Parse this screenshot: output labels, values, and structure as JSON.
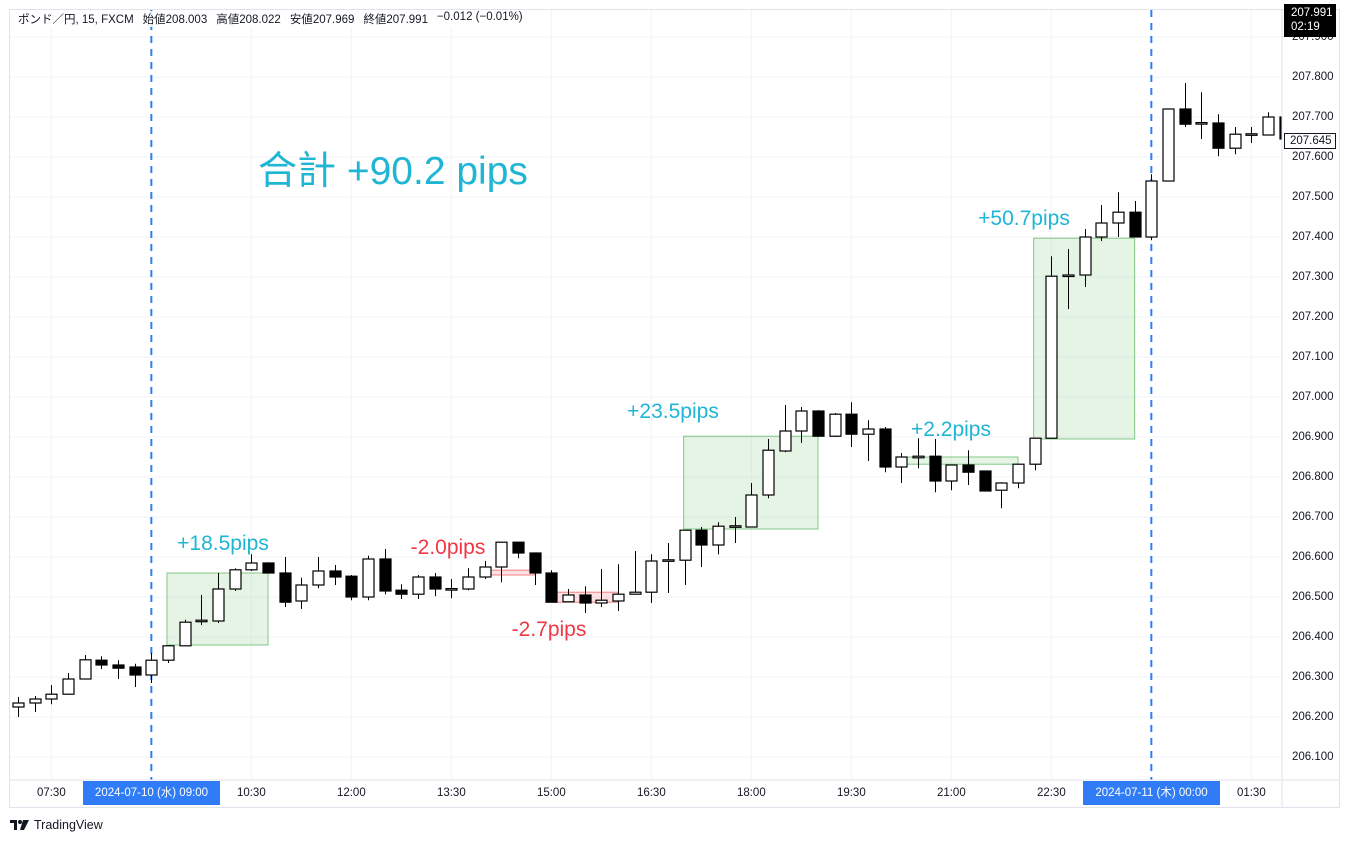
{
  "header": {
    "symbol": "ポンド／円, 15, FXCM",
    "open_label": "始値",
    "open": "208.003",
    "high_label": "高値",
    "high": "208.022",
    "low_label": "安値",
    "low": "207.969",
    "close_label": "終値",
    "close": "207.991",
    "change": "−0.012 (−0.01%)"
  },
  "price_axis": {
    "last_price": "207.991",
    "countdown": "02:19",
    "current_price": "207.645"
  },
  "time_axis": {
    "highlight_start": "2024-07-10 (水)   09:00",
    "highlight_end": "2024-07-11 (木)   00:00"
  },
  "total_label": "合計 +90.2 pips",
  "brand": "TradingView",
  "colors": {
    "up_text": "#1fb5d4",
    "down_text": "#f23645",
    "marker": "#2f7cf6",
    "profit_box": "#81c784",
    "loss_box": "#f08080"
  },
  "chart_data": {
    "type": "candlestick",
    "title": "ポンド／円, 15, FXCM",
    "interval_minutes": 15,
    "ylim": [
      206.05,
      207.92
    ],
    "yticks": [
      "206.100",
      "206.200",
      "206.300",
      "206.400",
      "206.500",
      "206.600",
      "206.700",
      "206.800",
      "206.900",
      "207.000",
      "207.100",
      "207.200",
      "207.300",
      "207.400",
      "207.500",
      "207.600",
      "207.700",
      "207.800",
      "207.900"
    ],
    "xticks": [
      "07:30",
      "10:30",
      "12:00",
      "13:30",
      "15:00",
      "16:30",
      "18:00",
      "19:30",
      "21:00",
      "22:30",
      "01:30"
    ],
    "vertical_markers": [
      "09:00",
      "00:00"
    ],
    "grid": true,
    "columns": [
      "time",
      "open",
      "high",
      "low",
      "close"
    ],
    "candles": [
      [
        "07:00",
        206.225,
        206.25,
        206.2,
        206.235
      ],
      [
        "07:15",
        206.235,
        206.2525,
        206.2125,
        206.245
      ],
      [
        "07:30",
        206.245,
        206.28,
        206.232,
        206.257
      ],
      [
        "07:45",
        206.257,
        206.31,
        206.257,
        206.295
      ],
      [
        "08:00",
        206.295,
        206.355,
        206.295,
        206.343
      ],
      [
        "08:15",
        206.342,
        206.352,
        206.32,
        206.33
      ],
      [
        "08:30",
        206.33,
        206.342,
        206.295,
        206.322
      ],
      [
        "08:45",
        206.325,
        206.333,
        206.275,
        206.305
      ],
      [
        "09:00",
        206.305,
        206.36,
        206.285,
        206.342
      ],
      [
        "09:15",
        206.342,
        206.378,
        206.335,
        206.378
      ],
      [
        "09:30",
        206.378,
        206.443,
        206.378,
        206.437
      ],
      [
        "09:45",
        206.44,
        206.505,
        206.43,
        206.442
      ],
      [
        "10:00",
        206.44,
        206.56,
        206.435,
        206.52
      ],
      [
        "10:15",
        206.52,
        206.572,
        206.515,
        206.568
      ],
      [
        "10:30",
        206.568,
        206.607,
        206.565,
        206.585
      ],
      [
        "10:45",
        206.585,
        206.587,
        206.56,
        206.56
      ],
      [
        "11:00",
        206.56,
        206.6,
        206.475,
        206.487
      ],
      [
        "11:15",
        206.49,
        206.548,
        206.47,
        206.53
      ],
      [
        "11:30",
        206.53,
        206.6,
        206.522,
        206.565
      ],
      [
        "11:45",
        206.565,
        206.58,
        206.53,
        206.55
      ],
      [
        "12:00",
        206.552,
        206.555,
        206.492,
        206.5
      ],
      [
        "12:15",
        206.5,
        206.603,
        206.492,
        206.595
      ],
      [
        "12:30",
        206.595,
        206.62,
        206.507,
        206.515
      ],
      [
        "12:45",
        206.517,
        206.532,
        206.495,
        206.507
      ],
      [
        "13:00",
        206.507,
        206.555,
        206.495,
        206.55
      ],
      [
        "13:15",
        206.55,
        206.56,
        206.502,
        206.52
      ],
      [
        "13:30",
        206.52,
        206.545,
        206.497,
        206.521
      ],
      [
        "13:45",
        206.52,
        206.572,
        206.517,
        206.55
      ],
      [
        "14:00",
        206.55,
        206.59,
        206.545,
        206.575
      ],
      [
        "14:15",
        206.575,
        206.637,
        206.537,
        206.637
      ],
      [
        "14:30",
        206.637,
        206.637,
        206.597,
        206.61
      ],
      [
        "14:45",
        206.61,
        206.61,
        206.53,
        206.56
      ],
      [
        "15:00",
        206.56,
        206.567,
        206.487,
        206.487
      ],
      [
        "15:15",
        206.488,
        206.52,
        206.487,
        206.505
      ],
      [
        "15:30",
        206.505,
        206.527,
        206.46,
        206.485
      ],
      [
        "15:45",
        206.485,
        206.57,
        206.475,
        206.492
      ],
      [
        "16:00",
        206.49,
        206.582,
        206.465,
        206.507
      ],
      [
        "16:15",
        206.507,
        206.615,
        206.507,
        206.512
      ],
      [
        "16:30",
        206.512,
        206.607,
        206.485,
        206.59
      ],
      [
        "16:45",
        206.592,
        206.635,
        206.51,
        206.593
      ],
      [
        "17:00",
        206.592,
        206.667,
        206.53,
        206.667
      ],
      [
        "17:15",
        206.667,
        206.675,
        206.575,
        206.63
      ],
      [
        "17:30",
        206.63,
        206.687,
        206.607,
        206.677
      ],
      [
        "17:45",
        206.677,
        206.7,
        206.635,
        206.678
      ],
      [
        "18:00",
        206.675,
        206.785,
        206.675,
        206.755
      ],
      [
        "18:15",
        206.755,
        206.895,
        206.747,
        206.867
      ],
      [
        "18:30",
        206.865,
        206.98,
        206.862,
        206.915
      ],
      [
        "18:45",
        206.915,
        206.975,
        206.885,
        206.965
      ],
      [
        "19:00",
        206.965,
        206.967,
        206.902,
        206.902
      ],
      [
        "19:15",
        206.902,
        206.96,
        206.9,
        206.957
      ],
      [
        "19:30",
        206.957,
        206.987,
        206.875,
        206.907
      ],
      [
        "19:45",
        206.907,
        206.942,
        206.84,
        206.92
      ],
      [
        "20:00",
        206.92,
        206.925,
        206.812,
        206.825
      ],
      [
        "20:15",
        206.825,
        206.86,
        206.785,
        206.85
      ],
      [
        "20:30",
        206.848,
        206.897,
        206.822,
        206.852
      ],
      [
        "20:45",
        206.852,
        206.895,
        206.762,
        206.79
      ],
      [
        "21:00",
        206.79,
        206.83,
        206.767,
        206.83
      ],
      [
        "21:15",
        206.83,
        206.867,
        206.78,
        206.812
      ],
      [
        "21:30",
        206.815,
        206.815,
        206.765,
        206.765
      ],
      [
        "21:45",
        206.767,
        206.787,
        206.722,
        206.785
      ],
      [
        "22:00",
        206.785,
        206.832,
        206.772,
        206.832
      ],
      [
        "22:15",
        206.832,
        206.897,
        206.817,
        206.897
      ],
      [
        "22:30",
        206.897,
        207.352,
        206.897,
        207.302
      ],
      [
        "22:45",
        207.302,
        207.37,
        207.22,
        207.305
      ],
      [
        "23:00",
        207.305,
        207.42,
        207.275,
        207.4
      ],
      [
        "23:15",
        207.4,
        207.48,
        207.39,
        207.435
      ],
      [
        "23:30",
        207.435,
        207.512,
        207.4,
        207.462
      ],
      [
        "23:45",
        207.462,
        207.49,
        207.4,
        207.4
      ],
      [
        "00:00",
        207.4,
        207.557,
        207.392,
        207.54
      ],
      [
        "00:15",
        207.54,
        207.72,
        207.54,
        207.72
      ],
      [
        "00:30",
        207.72,
        207.785,
        207.675,
        207.682
      ],
      [
        "00:45",
        207.685,
        207.762,
        207.645,
        207.686
      ],
      [
        "01:00",
        207.685,
        207.707,
        207.602,
        207.622
      ],
      [
        "01:15",
        207.622,
        207.675,
        207.607,
        207.657
      ],
      [
        "01:30",
        207.657,
        207.675,
        207.635,
        207.658
      ],
      [
        "01:45",
        207.655,
        207.712,
        207.655,
        207.7
      ],
      [
        "02:00",
        207.7,
        207.7,
        207.64,
        207.645
      ]
    ],
    "annotations": [
      {
        "label": "+18.5pips",
        "kind": "profit",
        "start": 9,
        "end": 15,
        "top": 206.56,
        "bottom": 206.38
      },
      {
        "label": "-2.0pips",
        "kind": "loss",
        "start": 28,
        "end": 31,
        "top": 206.567,
        "bottom": 206.555
      },
      {
        "label": "-2.7pips",
        "kind": "loss",
        "start": 32,
        "end": 36,
        "top": 206.512,
        "bottom": 206.487
      },
      {
        "label": "+23.5pips",
        "kind": "profit",
        "start": 40,
        "end": 48,
        "top": 206.902,
        "bottom": 206.67
      },
      {
        "label": "+2.2pips",
        "kind": "profit",
        "start": 53,
        "end": 60,
        "top": 206.85,
        "bottom": 206.832
      },
      {
        "label": "+50.7pips",
        "kind": "profit",
        "start": 61,
        "end": 67,
        "top": 207.397,
        "bottom": 206.895
      }
    ]
  }
}
